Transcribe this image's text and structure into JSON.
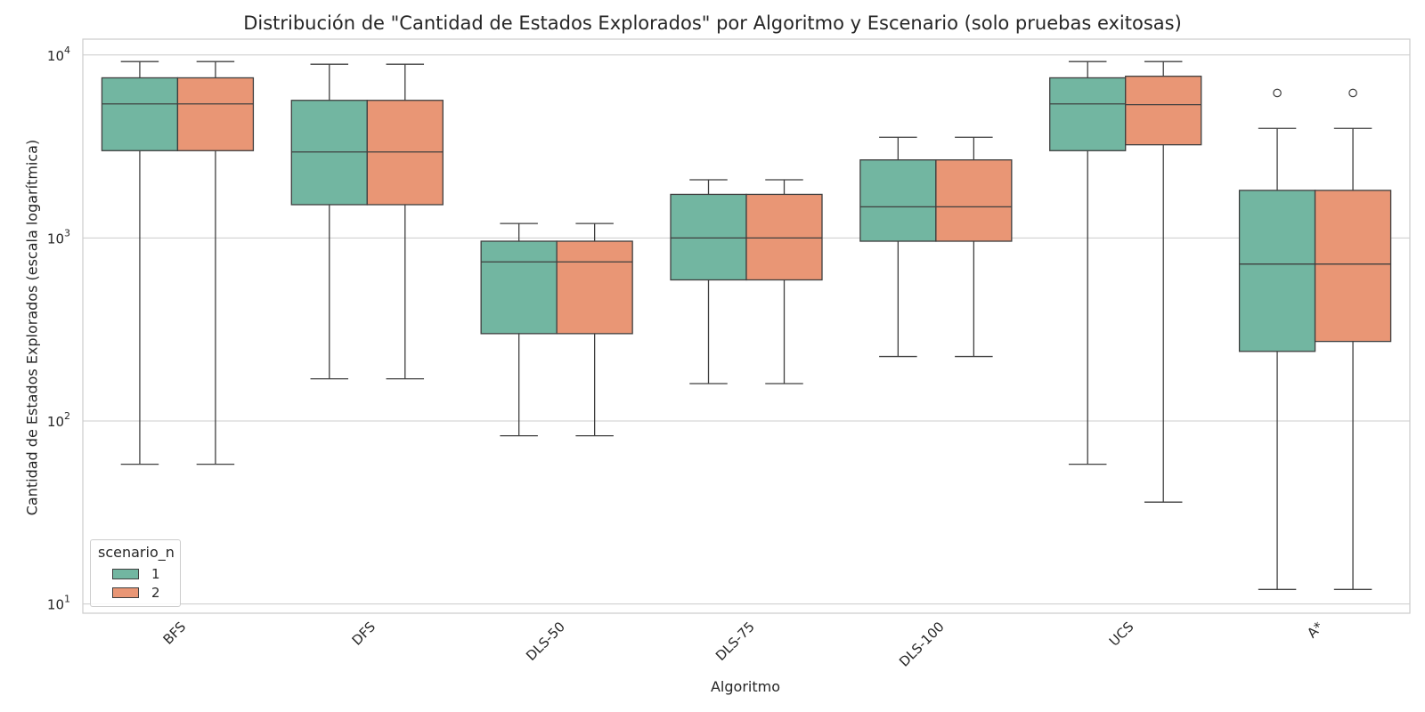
{
  "chart_data": {
    "type": "box",
    "title": "Distribución de \"Cantidad de Estados Explorados\" por Algoritmo y Escenario (solo pruebas exitosas)",
    "xlabel": "Algoritmo",
    "ylabel": "Cantidad de Estados Explorados (escala logarítmica)",
    "yscale": "log",
    "ylim": [
      8.9,
      12200
    ],
    "yticks": [
      {
        "base": "10",
        "exp": "1",
        "value": 10
      },
      {
        "base": "10",
        "exp": "2",
        "value": 100
      },
      {
        "base": "10",
        "exp": "3",
        "value": 1000
      },
      {
        "base": "10",
        "exp": "4",
        "value": 10000
      }
    ],
    "grid": true,
    "categories": [
      "BFS",
      "DFS",
      "DLS-50",
      "DLS-75",
      "DLS-100",
      "UCS",
      "A*"
    ],
    "legend": {
      "title": "scenario_n",
      "position": "lower-left"
    },
    "series": [
      {
        "name": "1",
        "color": "#72b6a1",
        "boxes": [
          {
            "whislo": 58,
            "q1": 3000,
            "med": 5400,
            "q3": 7500,
            "whishi": 9200,
            "fliers": []
          },
          {
            "whislo": 170,
            "q1": 1520,
            "med": 2950,
            "q3": 5650,
            "whishi": 8900,
            "fliers": []
          },
          {
            "whislo": 83,
            "q1": 300,
            "med": 740,
            "q3": 960,
            "whishi": 1200,
            "fliers": []
          },
          {
            "whislo": 160,
            "q1": 590,
            "med": 1000,
            "q3": 1730,
            "whishi": 2080,
            "fliers": []
          },
          {
            "whislo": 225,
            "q1": 960,
            "med": 1480,
            "q3": 2670,
            "whishi": 3550,
            "fliers": []
          },
          {
            "whislo": 58,
            "q1": 3000,
            "med": 5400,
            "q3": 7500,
            "whishi": 9200,
            "fliers": []
          },
          {
            "whislo": 12,
            "q1": 240,
            "med": 720,
            "q3": 1820,
            "whishi": 3970,
            "fliers": [
              6200
            ]
          }
        ]
      },
      {
        "name": "2",
        "color": "#e99675",
        "boxes": [
          {
            "whislo": 58,
            "q1": 3000,
            "med": 5400,
            "q3": 7500,
            "whishi": 9200,
            "fliers": []
          },
          {
            "whislo": 170,
            "q1": 1520,
            "med": 2950,
            "q3": 5650,
            "whishi": 8900,
            "fliers": []
          },
          {
            "whislo": 83,
            "q1": 300,
            "med": 740,
            "q3": 960,
            "whishi": 1200,
            "fliers": []
          },
          {
            "whislo": 160,
            "q1": 590,
            "med": 1000,
            "q3": 1730,
            "whishi": 2080,
            "fliers": []
          },
          {
            "whislo": 225,
            "q1": 960,
            "med": 1480,
            "q3": 2670,
            "whishi": 3550,
            "fliers": []
          },
          {
            "whislo": 36,
            "q1": 3230,
            "med": 5350,
            "q3": 7650,
            "whishi": 9200,
            "fliers": []
          },
          {
            "whislo": 12,
            "q1": 272,
            "med": 720,
            "q3": 1820,
            "whishi": 3970,
            "fliers": [
              6200
            ]
          }
        ]
      }
    ]
  }
}
